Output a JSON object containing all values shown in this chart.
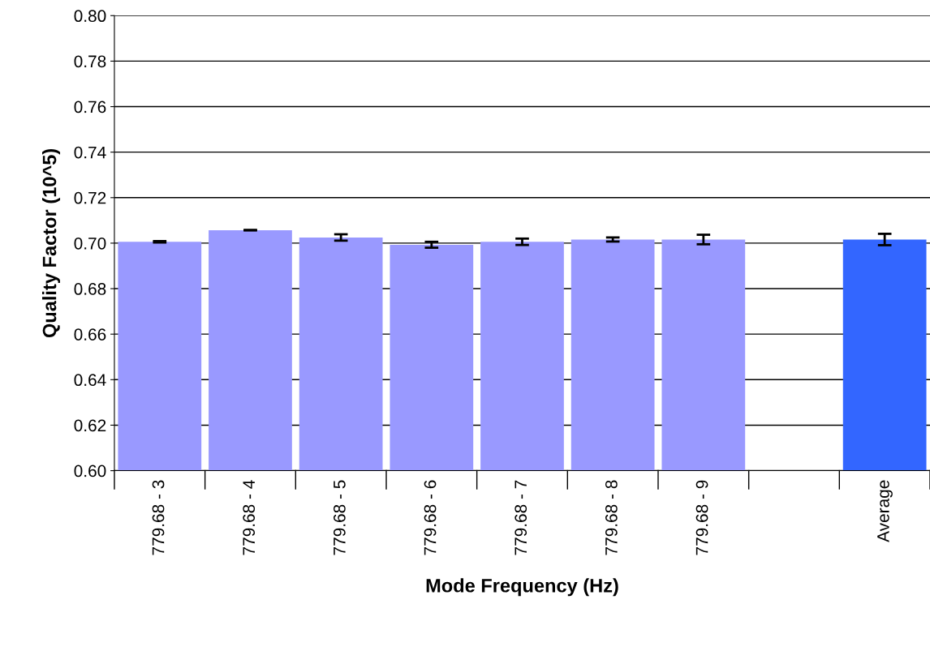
{
  "chart_data": {
    "type": "bar",
    "xlabel": "Mode Frequency (Hz)",
    "ylabel": "Quality Factor (10^5)",
    "categories": [
      "779.68 - 3",
      "779.68 - 4",
      "779.68 - 5",
      "779.68 - 6",
      "779.68 - 7",
      "779.68 - 8",
      "779.68 - 9",
      null,
      "Average"
    ],
    "values": [
      0.7006,
      0.7057,
      0.7025,
      0.6993,
      0.7006,
      0.7016,
      0.7016,
      null,
      0.7016
    ],
    "errors": [
      0.0003,
      0.0001,
      0.0014,
      0.0013,
      0.0014,
      0.0009,
      0.0021,
      null,
      0.0025
    ],
    "colors": [
      "#9999ff",
      "#9999ff",
      "#9999ff",
      "#9999ff",
      "#9999ff",
      "#9999ff",
      "#9999ff",
      "#9999ff",
      "#3366ff"
    ],
    "ylim": [
      0.6,
      0.8
    ],
    "yticks": [
      {
        "value": 0.6,
        "label": "0.60"
      },
      {
        "value": 0.62,
        "label": "0.62"
      },
      {
        "value": 0.64,
        "label": "0.64"
      },
      {
        "value": 0.66,
        "label": "0.66"
      },
      {
        "value": 0.68,
        "label": "0.68"
      },
      {
        "value": 0.7,
        "label": "0.70"
      },
      {
        "value": 0.72,
        "label": "0.72"
      },
      {
        "value": 0.74,
        "label": "0.74"
      },
      {
        "value": 0.76,
        "label": "0.76"
      },
      {
        "value": 0.78,
        "label": "0.78"
      },
      {
        "value": 0.8,
        "label": "0.80"
      }
    ],
    "grid": "y",
    "legend": false
  }
}
